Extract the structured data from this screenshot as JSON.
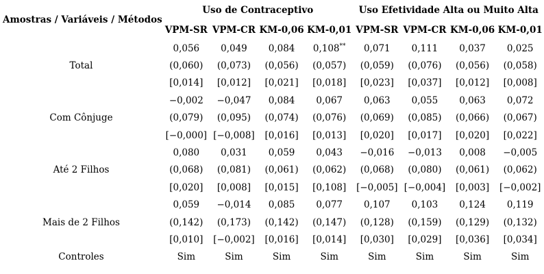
{
  "table": {
    "corner_header": "Amostras / Variáveis / Métodos",
    "groups": [
      {
        "label": "Uso de Contraceptivo"
      },
      {
        "label": "Uso Efetividade Alta ou Muito Alta"
      }
    ],
    "method_headers": [
      "VPM-SR",
      "VPM-CR",
      "KM-0,06",
      "KM-0,01",
      "VPM-SR",
      "VPM-CR",
      "KM-0,06",
      "KM-0,01"
    ],
    "rows": [
      {
        "label": "Total",
        "lines": [
          [
            "0,056",
            "0,049",
            "0,084",
            "0,108**",
            "0,071",
            "0,111",
            "0,037",
            "0,025"
          ],
          [
            "(0,060)",
            "(0,073)",
            "(0,056)",
            "(0,057)",
            "(0,059)",
            "(0,076)",
            "(0,056)",
            "(0,058)"
          ],
          [
            "[0,014]",
            "[0,012]",
            "[0,021]",
            "[0,018]",
            "[0,023]",
            "[0,037]",
            "[0,012]",
            "[0,008]"
          ]
        ]
      },
      {
        "label": "Com Cônjuge",
        "lines": [
          [
            "−0,002",
            "−0,047",
            "0,084",
            "0,067",
            "0,063",
            "0,055",
            "0,063",
            "0,072"
          ],
          [
            "(0,079)",
            "(0,095)",
            "(0,074)",
            "(0,076)",
            "(0,069)",
            "(0,085)",
            "(0,066)",
            "(0,067)"
          ],
          [
            "[−0,000]",
            "[−0,008]",
            "[0,016]",
            "[0,013]",
            "[0,020]",
            "[0,017]",
            "[0,020]",
            "[0,022]"
          ]
        ]
      },
      {
        "label": "Até 2 Filhos",
        "lines": [
          [
            "0,080",
            "0,031",
            "0,059",
            "0,043",
            "−0,016",
            "−0,013",
            "0,008",
            "−0,005"
          ],
          [
            "(0,068)",
            "(0,081)",
            "(0,061)",
            "(0,062)",
            "(0,068)",
            "(0,080)",
            "(0,061)",
            "(0,062)"
          ],
          [
            "[0,020]",
            "[0,008]",
            "[0,015]",
            "[0,108]",
            "[−0,005]",
            "[−0,004]",
            "[0,003]",
            "[−0,002]"
          ]
        ]
      },
      {
        "label": "Mais de 2 Filhos",
        "lines": [
          [
            "0,059",
            "−0,014",
            "0,085",
            "0,077",
            "0,107",
            "0,103",
            "0,124",
            "0,119"
          ],
          [
            "(0,142)",
            "(0,173)",
            "(0,142)",
            "(0,147)",
            "(0,128)",
            "(0,159)",
            "(0,129)",
            "(0,132)"
          ],
          [
            "[0,010]",
            "[−0,002]",
            "[0,016]",
            "[0,014]",
            "[0,030]",
            "[0,029]",
            "[0,036]",
            "[0,034]"
          ]
        ]
      }
    ],
    "controls_row": {
      "label": "Controles",
      "values": [
        "Sim",
        "Sim",
        "Sim",
        "Sim",
        "Sim",
        "Sim",
        "Sim",
        "Sim"
      ]
    }
  }
}
